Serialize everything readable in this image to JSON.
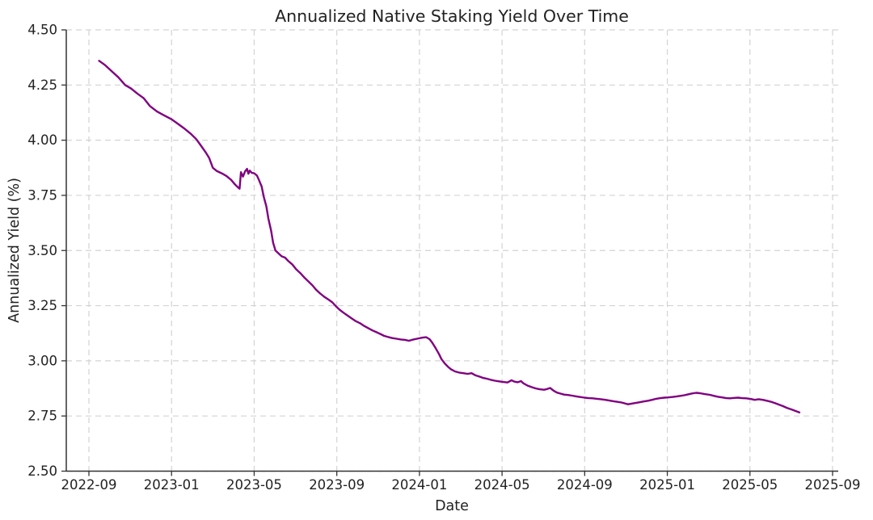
{
  "style": {
    "background": "#ffffff",
    "text_color": "#222222",
    "grid_color": "#d3d3d3",
    "spine_color": "#333333",
    "line_color": "#800080"
  },
  "chart_data": {
    "type": "line",
    "title": "Annualized Native Staking Yield Over Time",
    "xlabel": "Date",
    "ylabel": "Annualized Yield (%)",
    "ylim": [
      2.5,
      4.5
    ],
    "y_ticks": [
      2.5,
      2.75,
      3.0,
      3.25,
      3.5,
      3.75,
      4.0,
      4.25,
      4.5
    ],
    "x_ticks": [
      "2022-09",
      "2023-01",
      "2023-05",
      "2023-09",
      "2024-01",
      "2024-05",
      "2024-09",
      "2025-01",
      "2025-05",
      "2025-09"
    ],
    "grid": true,
    "legend_position": "none",
    "series": [
      {
        "name": "Annualized Native Staking Yield",
        "color": "#800080",
        "points": [
          [
            "2022-09-16",
            4.36
          ],
          [
            "2022-09-25",
            4.34
          ],
          [
            "2022-10-05",
            4.31
          ],
          [
            "2022-10-14",
            4.285
          ],
          [
            "2022-10-24",
            4.25
          ],
          [
            "2022-11-02",
            4.235
          ],
          [
            "2022-11-12",
            4.21
          ],
          [
            "2022-11-21",
            4.19
          ],
          [
            "2022-11-30",
            4.155
          ],
          [
            "2022-12-10",
            4.13
          ],
          [
            "2022-12-19",
            4.115
          ],
          [
            "2023-01-01",
            4.095
          ],
          [
            "2023-01-10",
            4.075
          ],
          [
            "2023-01-19",
            4.055
          ],
          [
            "2023-01-29",
            4.03
          ],
          [
            "2023-02-07",
            4.005
          ],
          [
            "2023-02-14",
            3.975
          ],
          [
            "2023-02-21",
            3.945
          ],
          [
            "2023-02-26",
            3.92
          ],
          [
            "2023-03-01",
            3.875
          ],
          [
            "2023-03-07",
            3.86
          ],
          [
            "2023-03-14",
            3.85
          ],
          [
            "2023-03-21",
            3.838
          ],
          [
            "2023-03-28",
            3.82
          ],
          [
            "2023-04-03",
            3.8
          ],
          [
            "2023-04-08",
            3.785
          ],
          [
            "2023-04-10",
            3.78
          ],
          [
            "2023-04-12",
            3.855
          ],
          [
            "2023-04-15",
            3.835
          ],
          [
            "2023-04-18",
            3.858
          ],
          [
            "2023-04-21",
            3.87
          ],
          [
            "2023-04-23",
            3.848
          ],
          [
            "2023-04-25",
            3.862
          ],
          [
            "2023-04-28",
            3.852
          ],
          [
            "2023-05-01",
            3.85
          ],
          [
            "2023-05-05",
            3.84
          ],
          [
            "2023-05-08",
            3.82
          ],
          [
            "2023-05-12",
            3.79
          ],
          [
            "2023-05-15",
            3.745
          ],
          [
            "2023-05-19",
            3.7
          ],
          [
            "2023-05-22",
            3.645
          ],
          [
            "2023-05-26",
            3.59
          ],
          [
            "2023-05-29",
            3.535
          ],
          [
            "2023-06-02",
            3.5
          ],
          [
            "2023-06-07",
            3.485
          ],
          [
            "2023-06-11",
            3.474
          ],
          [
            "2023-06-16",
            3.468
          ],
          [
            "2023-06-21",
            3.452
          ],
          [
            "2023-06-27",
            3.436
          ],
          [
            "2023-07-02",
            3.415
          ],
          [
            "2023-07-08",
            3.398
          ],
          [
            "2023-07-14",
            3.378
          ],
          [
            "2023-07-20",
            3.36
          ],
          [
            "2023-07-26",
            3.342
          ],
          [
            "2023-08-01",
            3.322
          ],
          [
            "2023-08-07",
            3.305
          ],
          [
            "2023-08-13",
            3.29
          ],
          [
            "2023-08-19",
            3.278
          ],
          [
            "2023-08-25",
            3.265
          ],
          [
            "2023-08-30",
            3.248
          ],
          [
            "2023-09-05",
            3.232
          ],
          [
            "2023-09-11",
            3.218
          ],
          [
            "2023-09-17",
            3.205
          ],
          [
            "2023-09-23",
            3.192
          ],
          [
            "2023-09-29",
            3.18
          ],
          [
            "2023-10-05",
            3.17
          ],
          [
            "2023-10-11",
            3.158
          ],
          [
            "2023-10-17",
            3.148
          ],
          [
            "2023-10-23",
            3.138
          ],
          [
            "2023-10-29",
            3.13
          ],
          [
            "2023-11-04",
            3.122
          ],
          [
            "2023-11-10",
            3.113
          ],
          [
            "2023-11-16",
            3.108
          ],
          [
            "2023-11-22",
            3.103
          ],
          [
            "2023-11-28",
            3.1
          ],
          [
            "2023-12-04",
            3.097
          ],
          [
            "2023-12-10",
            3.095
          ],
          [
            "2023-12-16",
            3.091
          ],
          [
            "2023-12-22",
            3.096
          ],
          [
            "2023-12-28",
            3.1
          ],
          [
            "2024-01-05",
            3.105
          ],
          [
            "2024-01-11",
            3.107
          ],
          [
            "2024-01-16",
            3.098
          ],
          [
            "2024-01-20",
            3.082
          ],
          [
            "2024-01-25",
            3.057
          ],
          [
            "2024-01-30",
            3.03
          ],
          [
            "2024-02-03",
            3.008
          ],
          [
            "2024-02-08",
            2.988
          ],
          [
            "2024-02-13",
            2.972
          ],
          [
            "2024-02-17",
            2.962
          ],
          [
            "2024-02-23",
            2.952
          ],
          [
            "2024-02-29",
            2.947
          ],
          [
            "2024-03-05",
            2.944
          ],
          [
            "2024-03-11",
            2.941
          ],
          [
            "2024-03-17",
            2.944
          ],
          [
            "2024-03-23",
            2.934
          ],
          [
            "2024-03-29",
            2.928
          ],
          [
            "2024-04-03",
            2.923
          ],
          [
            "2024-04-09",
            2.919
          ],
          [
            "2024-04-15",
            2.914
          ],
          [
            "2024-04-21",
            2.91
          ],
          [
            "2024-04-27",
            2.907
          ],
          [
            "2024-05-03",
            2.904
          ],
          [
            "2024-05-09",
            2.902
          ],
          [
            "2024-05-15",
            2.912
          ],
          [
            "2024-05-19",
            2.906
          ],
          [
            "2024-05-24",
            2.903
          ],
          [
            "2024-05-29",
            2.908
          ],
          [
            "2024-06-02",
            2.898
          ],
          [
            "2024-06-08",
            2.888
          ],
          [
            "2024-06-14",
            2.881
          ],
          [
            "2024-06-20",
            2.875
          ],
          [
            "2024-06-26",
            2.871
          ],
          [
            "2024-07-02",
            2.869
          ],
          [
            "2024-07-06",
            2.872
          ],
          [
            "2024-07-11",
            2.877
          ],
          [
            "2024-07-16",
            2.865
          ],
          [
            "2024-07-21",
            2.856
          ],
          [
            "2024-07-27",
            2.851
          ],
          [
            "2024-08-01",
            2.847
          ],
          [
            "2024-08-07",
            2.845
          ],
          [
            "2024-08-13",
            2.842
          ],
          [
            "2024-08-19",
            2.839
          ],
          [
            "2024-08-25",
            2.836
          ],
          [
            "2024-09-01",
            2.833
          ],
          [
            "2024-09-07",
            2.831
          ],
          [
            "2024-09-13",
            2.83
          ],
          [
            "2024-09-19",
            2.828
          ],
          [
            "2024-09-25",
            2.826
          ],
          [
            "2024-10-01",
            2.823
          ],
          [
            "2024-10-07",
            2.82
          ],
          [
            "2024-10-13",
            2.817
          ],
          [
            "2024-10-19",
            2.814
          ],
          [
            "2024-10-25",
            2.811
          ],
          [
            "2024-10-31",
            2.806
          ],
          [
            "2024-11-04",
            2.803
          ],
          [
            "2024-11-09",
            2.806
          ],
          [
            "2024-11-15",
            2.809
          ],
          [
            "2024-11-21",
            2.812
          ],
          [
            "2024-11-27",
            2.816
          ],
          [
            "2024-12-03",
            2.819
          ],
          [
            "2024-12-09",
            2.823
          ],
          [
            "2024-12-15",
            2.828
          ],
          [
            "2024-12-21",
            2.831
          ],
          [
            "2024-12-27",
            2.833
          ],
          [
            "2025-01-02",
            2.834
          ],
          [
            "2025-01-08",
            2.836
          ],
          [
            "2025-01-14",
            2.838
          ],
          [
            "2025-01-20",
            2.841
          ],
          [
            "2025-01-26",
            2.844
          ],
          [
            "2025-02-01",
            2.848
          ],
          [
            "2025-02-07",
            2.852
          ],
          [
            "2025-02-13",
            2.855
          ],
          [
            "2025-02-19",
            2.853
          ],
          [
            "2025-02-25",
            2.85
          ],
          [
            "2025-03-03",
            2.846
          ],
          [
            "2025-03-09",
            2.841
          ],
          [
            "2025-03-15",
            2.837
          ],
          [
            "2025-03-21",
            2.834
          ],
          [
            "2025-03-27",
            2.831
          ],
          [
            "2025-04-02",
            2.83
          ],
          [
            "2025-04-08",
            2.832
          ],
          [
            "2025-04-14",
            2.833
          ],
          [
            "2025-04-20",
            2.831
          ],
          [
            "2025-04-26",
            2.83
          ],
          [
            "2025-05-02",
            2.827
          ],
          [
            "2025-05-08",
            2.823
          ],
          [
            "2025-05-14",
            2.826
          ],
          [
            "2025-05-20",
            2.823
          ],
          [
            "2025-05-26",
            2.819
          ],
          [
            "2025-06-01",
            2.815
          ],
          [
            "2025-06-07",
            2.809
          ],
          [
            "2025-06-13",
            2.802
          ],
          [
            "2025-06-19",
            2.795
          ],
          [
            "2025-06-25",
            2.787
          ],
          [
            "2025-07-01",
            2.78
          ],
          [
            "2025-07-07",
            2.773
          ],
          [
            "2025-07-13",
            2.766
          ]
        ]
      }
    ]
  }
}
